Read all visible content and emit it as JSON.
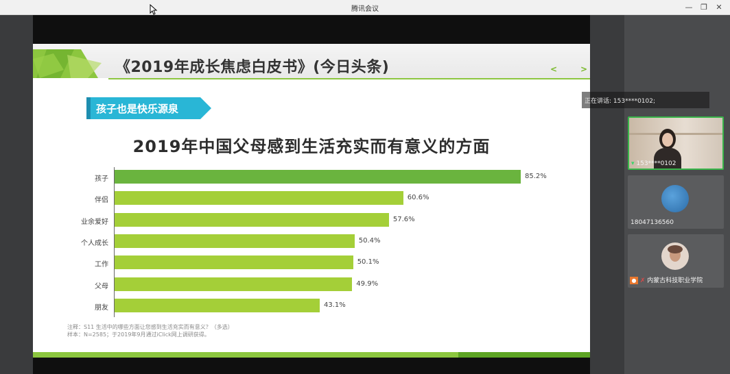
{
  "window": {
    "title": "腾讯会议"
  },
  "slide": {
    "title": "《2019年成长焦虑白皮书》(今日头条)",
    "nav_prev": "<",
    "nav_next": ">",
    "ribbon_label": "孩子也是快乐源泉",
    "note_line1": "注释：S11 生活中的哪些方面让您感到生活充实而有意义？（多选）",
    "note_line2": "样本：N=2585；于2019年9月通过iClick网上调研获得。"
  },
  "chart_data": {
    "type": "bar",
    "orientation": "horizontal",
    "title": "2019年中国父母感到生活充实而有意义的方面",
    "categories": [
      "孩子",
      "伴侣",
      "业余爱好",
      "个人成长",
      "工作",
      "父母",
      "朋友"
    ],
    "values": [
      85.2,
      60.6,
      57.6,
      50.4,
      50.1,
      49.9,
      43.1
    ],
    "value_labels": [
      "85.2%",
      "60.6%",
      "57.6%",
      "50.4%",
      "50.1%",
      "49.9%",
      "43.1%"
    ],
    "xlim": [
      0,
      100
    ],
    "grid": false,
    "colors": {
      "highlight": "#6ab43e",
      "default": "#a4cf38"
    }
  },
  "meeting": {
    "speaking_label": "正在讲话: 153****0102;",
    "participants": [
      {
        "name": "153****0102"
      },
      {
        "name": "18047136560"
      },
      {
        "name": "内蒙古科技职业学院"
      }
    ]
  }
}
